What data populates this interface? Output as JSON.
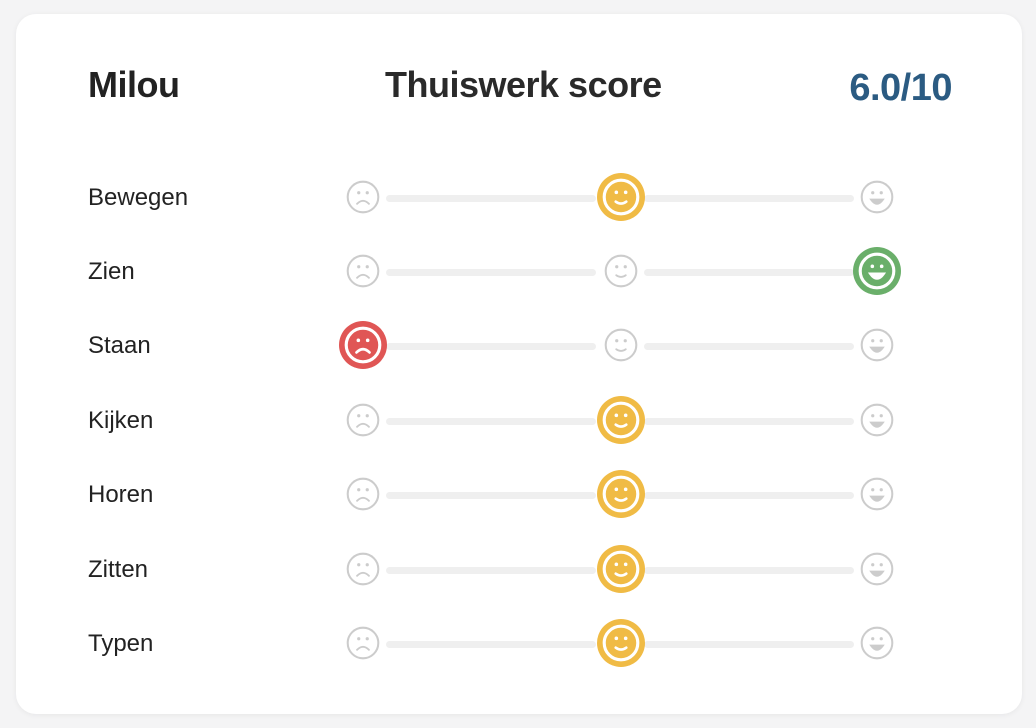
{
  "header": {
    "name": "Milou",
    "title": "Thuiswerk score",
    "score": "6.0/10"
  },
  "colors": {
    "score_text": "#2b5b82",
    "inactive_face": "#cccccc",
    "neutral_selected": "#f0bb45",
    "happy_selected": "#6aaf6a",
    "sad_selected": "#e05655",
    "track": "#efefef"
  },
  "rows": [
    {
      "label": "Bewegen",
      "selected": 1
    },
    {
      "label": "Zien",
      "selected": 2
    },
    {
      "label": "Staan",
      "selected": 0
    },
    {
      "label": "Kijken",
      "selected": 1
    },
    {
      "label": "Horen",
      "selected": 1
    },
    {
      "label": "Zitten",
      "selected": 1
    },
    {
      "label": "Typen",
      "selected": 1
    }
  ],
  "scale": [
    {
      "icon": "sad-face-icon"
    },
    {
      "icon": "neutral-face-icon"
    },
    {
      "icon": "happy-face-icon"
    }
  ]
}
